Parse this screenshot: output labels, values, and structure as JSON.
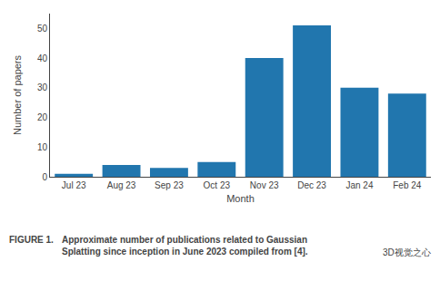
{
  "chart_data": {
    "type": "bar",
    "categories": [
      "Jul 23",
      "Aug 23",
      "Sep 23",
      "Oct 23",
      "Nov 23",
      "Dec 23",
      "Jan 24",
      "Feb 24"
    ],
    "values": [
      1,
      4,
      3,
      5,
      40,
      51,
      30,
      28
    ],
    "color": "#2176AE",
    "xlabel": "Month",
    "ylabel": "Number of papers",
    "ylim": [
      0,
      55
    ],
    "yticks": [
      0,
      10,
      20,
      30,
      40,
      50
    ],
    "grid": false,
    "annotations": [
      "FIGURE 1.",
      "Approximate number of publications related to Gaussian\nSplatting since inception in June 2023 compiled from [4].",
      "3D视觉之心"
    ]
  }
}
